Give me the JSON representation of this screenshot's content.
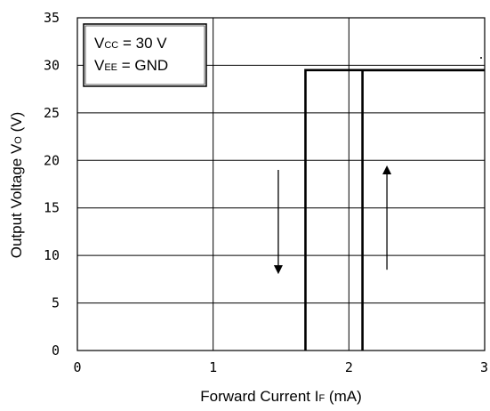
{
  "chart_data": {
    "type": "line",
    "title": "",
    "xlabel": {
      "prefix": "Forward Current  I",
      "sub": "F",
      "suffix": " (mA)"
    },
    "ylabel": {
      "prefix": "Output Voltage  V",
      "sub": "O",
      "suffix": " (V)"
    },
    "xlim": [
      0,
      3
    ],
    "ylim": [
      0,
      35
    ],
    "xticks": [
      "0",
      "1",
      "2",
      "3"
    ],
    "yticks": [
      "0",
      "5",
      "10",
      "15",
      "20",
      "25",
      "30",
      "35"
    ],
    "grid": true,
    "annotation": {
      "line1": {
        "prefix": "V",
        "sub": "CC",
        "suffix": " = 30 V"
      },
      "line2": {
        "prefix": "V",
        "sub": "EE",
        "suffix": " = GND"
      },
      "placement": "top-left"
    },
    "series": [
      {
        "direction": "decreasing",
        "x": [
          3.0,
          1.68,
          1.68
        ],
        "y": [
          29.5,
          29.5,
          0
        ],
        "arrow": {
          "x": 1.48,
          "y_from": 19,
          "y_to": 8.5
        }
      },
      {
        "direction": "increasing",
        "x": [
          2.1,
          2.1,
          3.0
        ],
        "y": [
          0,
          29.5,
          29.5
        ],
        "arrow": {
          "x": 2.28,
          "y_from": 8.5,
          "y_to": 19
        }
      }
    ]
  }
}
